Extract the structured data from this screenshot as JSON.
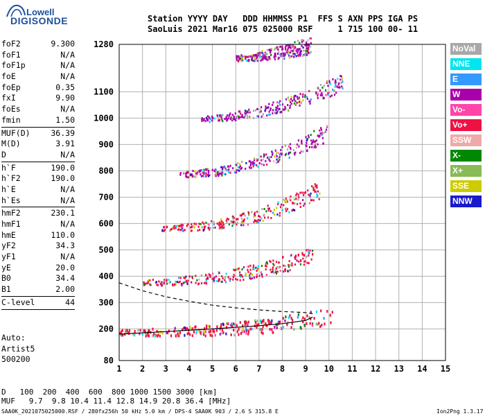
{
  "logo": {
    "line1": "Lowell",
    "line2": "DIGISONDE"
  },
  "header": {
    "row1": "Station YYYY DAY   DDD HHMMSS P1  FFS S AXN PPS IGA PS",
    "row2": "SaoLuis 2021 Mar16 075 025000 RSF     1 715 100 00- 11"
  },
  "params": [
    {
      "group": 1,
      "name": "foF2",
      "value": "9.300"
    },
    {
      "group": 1,
      "name": "foF1",
      "value": "N/A"
    },
    {
      "group": 1,
      "name": "foF1p",
      "value": "N/A"
    },
    {
      "group": 1,
      "name": "foE",
      "value": "N/A"
    },
    {
      "group": 1,
      "name": "foEp",
      "value": "0.35"
    },
    {
      "group": 1,
      "name": "fxI",
      "value": "9.90"
    },
    {
      "group": 1,
      "name": "foEs",
      "value": "N/A"
    },
    {
      "group": 1,
      "name": "fmin",
      "value": "1.50"
    },
    {
      "group": 2,
      "name": "MUF(D)",
      "value": "36.39"
    },
    {
      "group": 2,
      "name": "M(D)",
      "value": "3.91"
    },
    {
      "group": 2,
      "name": "D",
      "value": "N/A"
    },
    {
      "group": 3,
      "name": "h`F",
      "value": "190.0"
    },
    {
      "group": 3,
      "name": "h`F2",
      "value": "190.0"
    },
    {
      "group": 3,
      "name": "h`E",
      "value": "N/A"
    },
    {
      "group": 3,
      "name": "h`Es",
      "value": "N/A"
    },
    {
      "group": 4,
      "name": "hmF2",
      "value": "230.1"
    },
    {
      "group": 4,
      "name": "hmF1",
      "value": "N/A"
    },
    {
      "group": 4,
      "name": "hmE",
      "value": "110.0"
    },
    {
      "group": 4,
      "name": "yF2",
      "value": "34.3"
    },
    {
      "group": 4,
      "name": "yF1",
      "value": "N/A"
    },
    {
      "group": 4,
      "name": "yE",
      "value": "20.0"
    },
    {
      "group": 4,
      "name": "B0",
      "value": "34.4"
    },
    {
      "group": 4,
      "name": "B1",
      "value": "2.00"
    },
    {
      "group": 5,
      "name": "C-level",
      "value": "44"
    }
  ],
  "autoscaling": {
    "line1": "Auto:",
    "line2": "Artist5",
    "line3": "500200"
  },
  "legend": [
    {
      "label": "NoVal",
      "color": "#a8a8a8"
    },
    {
      "label": "NNE",
      "color": "#00e5ee"
    },
    {
      "label": "E",
      "color": "#3399ff"
    },
    {
      "label": "W",
      "color": "#aa00aa"
    },
    {
      "label": "Vo-",
      "color": "#ff44aa"
    },
    {
      "label": "Vo+",
      "color": "#ee1144"
    },
    {
      "label": "SSW",
      "color": "#f0a8a8"
    },
    {
      "label": "X-",
      "color": "#008800"
    },
    {
      "label": "X+",
      "color": "#88bb55"
    },
    {
      "label": "SSE",
      "color": "#cccc00"
    },
    {
      "label": "NNW",
      "color": "#1a1acc"
    }
  ],
  "muf_table": {
    "d_label": "D",
    "distances": [
      "100",
      "200",
      "400",
      "600",
      "800",
      "1000",
      "1500",
      "3000"
    ],
    "d_unit": "[km]",
    "muf_label": "MUF",
    "mufs": [
      "9.7",
      "9.8",
      "10.4",
      "11.4",
      "12.8",
      "14.9",
      "20.8",
      "36.4"
    ],
    "muf_unit": "[MHz]"
  },
  "bottom_line": "SAA0K_2021075025000.RSF / 280fx256h 50 kHz 5.0 km / DPS-4 SAA0K 903 / 2.6 S 315.8 E",
  "version": "Ion2Png 1.3.17",
  "chart_data": {
    "type": "scatter",
    "x_ticks": [
      "1",
      "2",
      "3",
      "4",
      "5",
      "6",
      "7",
      "8",
      "9",
      "10",
      "11",
      "12",
      "13",
      "14",
      "15"
    ],
    "y_ticks": [
      "80",
      "200",
      "300",
      "400",
      "500",
      "600",
      "700",
      "800",
      "900",
      "1000",
      "1100",
      "1280"
    ],
    "xlim": [
      1,
      15
    ],
    "ylim": [
      80,
      1280
    ],
    "grid": true,
    "legend_position": "right",
    "traces": [
      {
        "name": "1st hop",
        "f_start": 1.0,
        "f_end": 10.2,
        "h_start": 190,
        "h_end": 250,
        "curve": 2.2,
        "dom": "#ee1144"
      },
      {
        "name": "2nd hop",
        "f_start": 2.0,
        "f_end": 9.3,
        "h_start": 380,
        "h_end": 480,
        "curve": 2.0,
        "dom": "#ee1144"
      },
      {
        "name": "3rd hop",
        "f_start": 2.8,
        "f_end": 9.6,
        "h_start": 585,
        "h_end": 730,
        "curve": 2.2,
        "dom": "#ee1144"
      },
      {
        "name": "4th hop",
        "f_start": 3.5,
        "f_end": 9.9,
        "h_start": 790,
        "h_end": 950,
        "curve": 2.0,
        "dom": "#aa00aa"
      },
      {
        "name": "5th hop",
        "f_start": 4.5,
        "f_end": 10.6,
        "h_start": 1000,
        "h_end": 1140,
        "curve": 1.8,
        "dom": "#aa00aa"
      },
      {
        "name": "6th hop",
        "f_start": 6.0,
        "f_end": 9.2,
        "h_start": 1230,
        "h_end": 1280,
        "curve": 1.5,
        "dom": "#aa00aa"
      }
    ],
    "profile_solid": {
      "f": [
        1.0,
        3.0,
        5.0,
        7.0,
        8.0,
        9.0,
        9.3
      ],
      "h": [
        180,
        190,
        200,
        212,
        220,
        232,
        245
      ]
    },
    "profile_dashed": {
      "f": [
        1.0,
        2.0,
        3.0,
        4.0,
        5.0,
        6.0,
        7.0,
        8.0,
        9.0,
        9.3
      ],
      "h": [
        375,
        345,
        322,
        305,
        290,
        280,
        272,
        266,
        262,
        258
      ]
    }
  }
}
